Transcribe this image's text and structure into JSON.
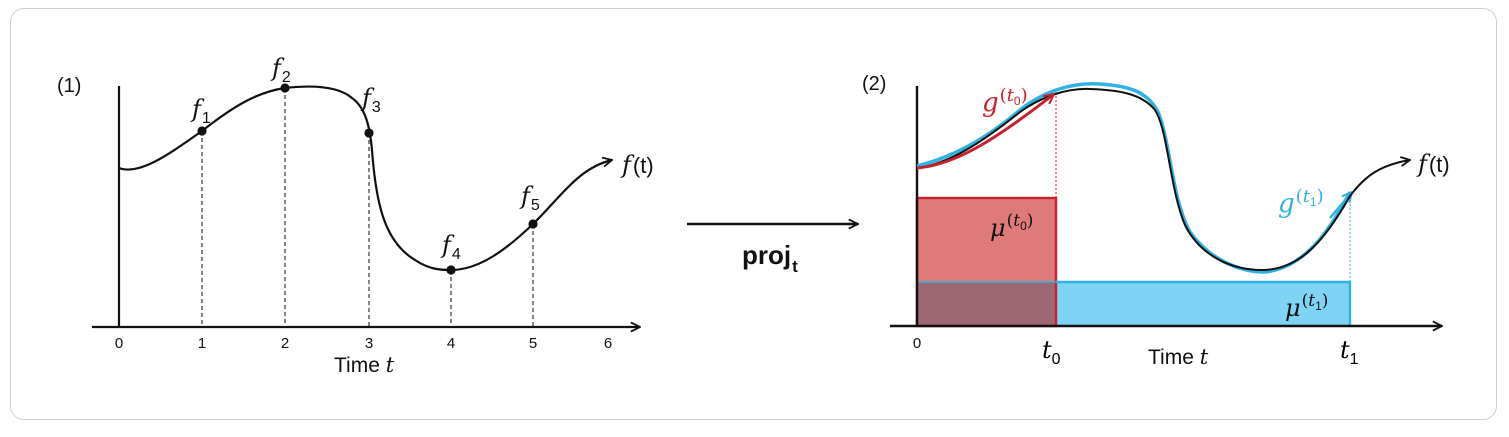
{
  "panel1": {
    "label": "(1)",
    "x_ticks": [
      "0",
      "1",
      "2",
      "3",
      "4",
      "5",
      "6"
    ],
    "xlabel_text": "Time ",
    "xlabel_var": "t",
    "curve_fn": "f",
    "curve_arg": "(t)",
    "points": [
      {
        "name": "f",
        "sub": "1"
      },
      {
        "name": "f",
        "sub": "2"
      },
      {
        "name": "f",
        "sub": "3"
      },
      {
        "name": "f",
        "sub": "4"
      },
      {
        "name": "f",
        "sub": "5"
      }
    ]
  },
  "arrow": {
    "label_main": "proj",
    "label_sub": "t"
  },
  "panel2": {
    "label": "(2)",
    "tick_zero": "0",
    "tick_t0_base": "t",
    "tick_t0_sub": "0",
    "tick_t1_base": "t",
    "tick_t1_sub": "1",
    "xlabel_text": "Time ",
    "xlabel_var": "t",
    "curve_fn": "f",
    "curve_arg": "(t)",
    "g0": {
      "base": "g",
      "sup_open": "(",
      "sup_var": "t",
      "sup_sub": "0",
      "sup_close": ")"
    },
    "g1": {
      "base": "g",
      "sup_open": "(",
      "sup_var": "t",
      "sup_sub": "1",
      "sup_close": ")"
    },
    "mu0": {
      "base": "μ",
      "sup_open": "(",
      "sup_var": "t",
      "sup_sub": "0",
      "sup_close": ")"
    },
    "mu1": {
      "base": "μ",
      "sup_open": "(",
      "sup_var": "t",
      "sup_sub": "1",
      "sup_close": ")"
    }
  },
  "colors": {
    "red": "#c8202c",
    "red_fill": "#de7a79",
    "blue": "#2eb2e6",
    "blue_fill": "#7fd3f4",
    "overlap_fill": "#9d6774"
  }
}
